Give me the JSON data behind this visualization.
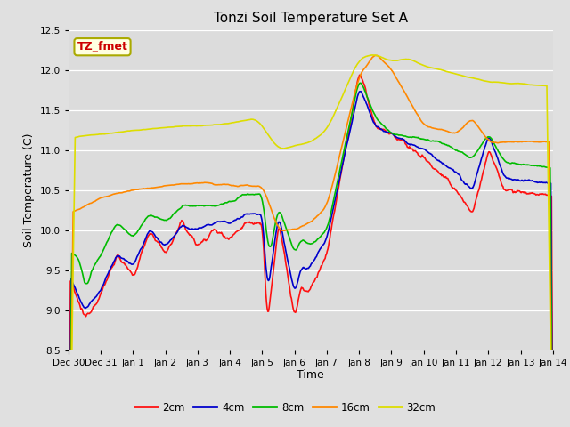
{
  "title": "Tonzi Soil Temperature Set A",
  "xlabel": "Time",
  "ylabel": "Soil Temperature (C)",
  "ylim": [
    8.5,
    12.5
  ],
  "fig_bg": "#e0e0e0",
  "plot_bg": "#dcdcdc",
  "annotation_text": "TZ_fmet",
  "annotation_bg": "#ffffe0",
  "annotation_fg": "#cc0000",
  "annotation_border": "#aaaa00",
  "line_colors": [
    "#ff1111",
    "#0000cc",
    "#00bb00",
    "#ff8800",
    "#dddd00"
  ],
  "tick_labels": [
    "Dec 30",
    "Dec 31",
    "Jan 1",
    "Jan 2",
    "Jan 3",
    "Jan 4",
    "Jan 5",
    "Jan 6",
    "Jan 7",
    "Jan 8",
    "Jan 9",
    "Jan 10",
    "Jan 11",
    "Jan 12",
    "Jan 13",
    "Jan 14"
  ],
  "legend_labels": [
    "2cm",
    "4cm",
    "8cm",
    "16cm",
    "32cm"
  ]
}
